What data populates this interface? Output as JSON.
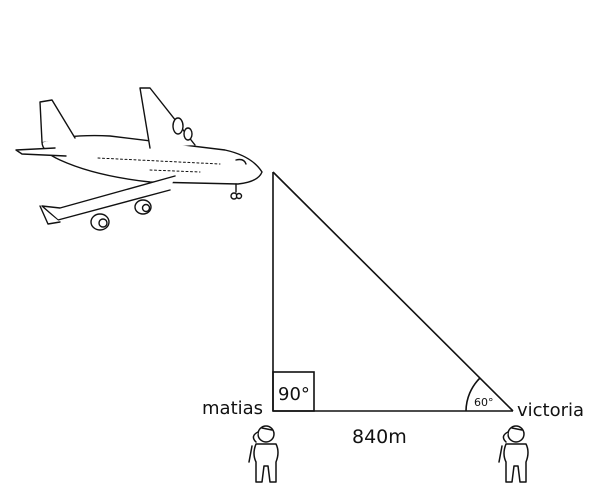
{
  "labels": {
    "right_angle": "90°",
    "angle": "60°",
    "left_person": "matias",
    "right_person": "victoria",
    "base_distance": "840m"
  },
  "icons": {
    "airplane": "airplane-icon",
    "left_person": "person-icon",
    "right_person": "person-icon"
  },
  "colors": {
    "stroke": "#111111",
    "background": "#ffffff"
  }
}
